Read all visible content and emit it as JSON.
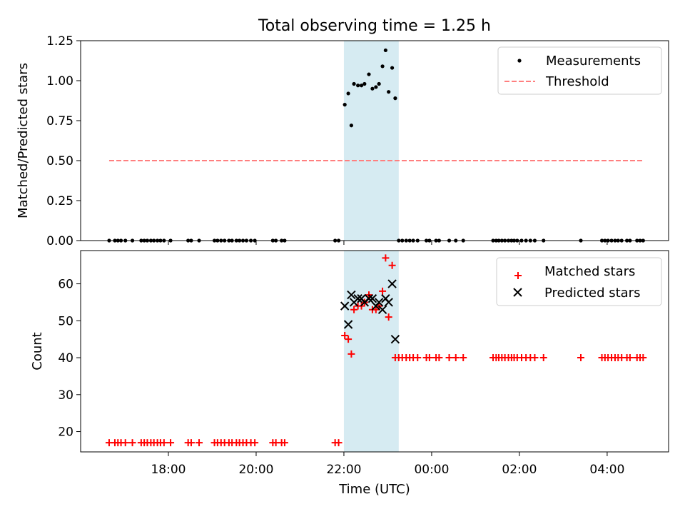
{
  "chart_data": [
    {
      "type": "scatter",
      "title": "Total observing time = 1.25 h",
      "xlabel": "",
      "ylabel": "Matched/Predicted stars",
      "ylim": [
        0,
        1.25
      ],
      "yticks": [
        "0.00",
        "0.25",
        "0.50",
        "0.75",
        "1.00",
        "1.25"
      ],
      "x_unit": "hours since 00:00 (UTC), negative = previous day",
      "xlim": [
        -8.0,
        5.4
      ],
      "shaded_interval": [
        -2.0,
        -0.75
      ],
      "shade_color": "#add8e6",
      "legend": "top-right",
      "series": [
        {
          "name": "Measurements",
          "kind": "dots",
          "color": "#000000",
          "points": [
            [
              -7.35,
              0
            ],
            [
              -7.22,
              0
            ],
            [
              -7.15,
              0
            ],
            [
              -7.08,
              0
            ],
            [
              -6.98,
              0
            ],
            [
              -6.82,
              0
            ],
            [
              -6.62,
              0
            ],
            [
              -6.55,
              0
            ],
            [
              -6.48,
              0
            ],
            [
              -6.4,
              0
            ],
            [
              -6.33,
              0
            ],
            [
              -6.25,
              0
            ],
            [
              -6.18,
              0
            ],
            [
              -6.1,
              0
            ],
            [
              -5.95,
              0
            ],
            [
              -5.55,
              0
            ],
            [
              -5.48,
              0
            ],
            [
              -5.3,
              0
            ],
            [
              -4.95,
              0
            ],
            [
              -4.88,
              0
            ],
            [
              -4.8,
              0
            ],
            [
              -4.72,
              0
            ],
            [
              -4.62,
              0
            ],
            [
              -4.55,
              0
            ],
            [
              -4.45,
              0
            ],
            [
              -4.38,
              0
            ],
            [
              -4.3,
              0
            ],
            [
              -4.22,
              0
            ],
            [
              -4.12,
              0
            ],
            [
              -4.03,
              0
            ],
            [
              -3.62,
              0
            ],
            [
              -3.55,
              0
            ],
            [
              -3.42,
              0
            ],
            [
              -3.35,
              0
            ],
            [
              -2.2,
              0
            ],
            [
              -2.12,
              0
            ],
            [
              -1.98,
              0.85
            ],
            [
              -1.9,
              0.92
            ],
            [
              -1.83,
              0.72
            ],
            [
              -1.77,
              0.98
            ],
            [
              -1.68,
              0.97
            ],
            [
              -1.6,
              0.97
            ],
            [
              -1.53,
              0.98
            ],
            [
              -1.43,
              1.04
            ],
            [
              -1.35,
              0.95
            ],
            [
              -1.27,
              0.96
            ],
            [
              -1.2,
              0.98
            ],
            [
              -1.12,
              1.09
            ],
            [
              -1.05,
              1.19
            ],
            [
              -0.98,
              0.93
            ],
            [
              -0.9,
              1.08
            ],
            [
              -0.83,
              0.89
            ],
            [
              -0.75,
              0
            ],
            [
              -0.67,
              0
            ],
            [
              -0.58,
              0
            ],
            [
              -0.5,
              0
            ],
            [
              -0.42,
              0
            ],
            [
              -0.32,
              0
            ],
            [
              -0.12,
              0
            ],
            [
              -0.05,
              0
            ],
            [
              0.1,
              0
            ],
            [
              0.17,
              0
            ],
            [
              0.4,
              0
            ],
            [
              0.55,
              0
            ],
            [
              0.72,
              0
            ],
            [
              1.4,
              0
            ],
            [
              1.47,
              0
            ],
            [
              1.53,
              0
            ],
            [
              1.6,
              0
            ],
            [
              1.67,
              0
            ],
            [
              1.75,
              0
            ],
            [
              1.82,
              0
            ],
            [
              1.88,
              0
            ],
            [
              1.95,
              0
            ],
            [
              2.05,
              0
            ],
            [
              2.15,
              0
            ],
            [
              2.25,
              0
            ],
            [
              2.35,
              0
            ],
            [
              2.55,
              0
            ],
            [
              3.4,
              0
            ],
            [
              3.88,
              0
            ],
            [
              3.95,
              0
            ],
            [
              4.02,
              0
            ],
            [
              4.1,
              0
            ],
            [
              4.18,
              0
            ],
            [
              4.25,
              0
            ],
            [
              4.33,
              0
            ],
            [
              4.45,
              0
            ],
            [
              4.52,
              0
            ],
            [
              4.68,
              0
            ],
            [
              4.75,
              0
            ],
            [
              4.82,
              0
            ]
          ]
        },
        {
          "name": "Threshold",
          "kind": "dashed-line",
          "color": "#ff7f7f",
          "points": [
            [
              -7.35,
              0.5
            ],
            [
              4.8,
              0.5
            ]
          ]
        }
      ]
    },
    {
      "type": "scatter",
      "title": "",
      "xlabel": "Time (UTC)",
      "ylabel": "Count",
      "ylim": [
        14.5,
        69
      ],
      "yticks": [
        "20",
        "30",
        "40",
        "50",
        "60"
      ],
      "x_unit": "hours since 00:00 (UTC), negative = previous day",
      "xlim": [
        -8.0,
        5.4
      ],
      "xticks": [
        "18:00",
        "20:00",
        "22:00",
        "00:00",
        "02:00",
        "04:00"
      ],
      "shaded_interval": [
        -2.0,
        -0.75
      ],
      "shade_color": "#add8e6",
      "legend": "top-right",
      "series": [
        {
          "name": "Matched stars",
          "kind": "plus",
          "color": "#ff0000",
          "points": [
            [
              -7.35,
              17
            ],
            [
              -7.22,
              17
            ],
            [
              -7.15,
              17
            ],
            [
              -7.08,
              17
            ],
            [
              -6.98,
              17
            ],
            [
              -6.82,
              17
            ],
            [
              -6.62,
              17
            ],
            [
              -6.55,
              17
            ],
            [
              -6.48,
              17
            ],
            [
              -6.4,
              17
            ],
            [
              -6.33,
              17
            ],
            [
              -6.25,
              17
            ],
            [
              -6.18,
              17
            ],
            [
              -6.1,
              17
            ],
            [
              -5.95,
              17
            ],
            [
              -5.55,
              17
            ],
            [
              -5.48,
              17
            ],
            [
              -5.3,
              17
            ],
            [
              -4.95,
              17
            ],
            [
              -4.88,
              17
            ],
            [
              -4.8,
              17
            ],
            [
              -4.72,
              17
            ],
            [
              -4.62,
              17
            ],
            [
              -4.55,
              17
            ],
            [
              -4.45,
              17
            ],
            [
              -4.38,
              17
            ],
            [
              -4.3,
              17
            ],
            [
              -4.22,
              17
            ],
            [
              -4.12,
              17
            ],
            [
              -4.03,
              17
            ],
            [
              -3.62,
              17
            ],
            [
              -3.55,
              17
            ],
            [
              -3.42,
              17
            ],
            [
              -3.35,
              17
            ],
            [
              -2.2,
              17
            ],
            [
              -2.12,
              17
            ],
            [
              -1.98,
              46
            ],
            [
              -1.9,
              45
            ],
            [
              -1.83,
              41
            ],
            [
              -1.77,
              53
            ],
            [
              -1.68,
              54
            ],
            [
              -1.6,
              54
            ],
            [
              -1.53,
              55
            ],
            [
              -1.43,
              57
            ],
            [
              -1.35,
              53
            ],
            [
              -1.27,
              53
            ],
            [
              -1.2,
              54
            ],
            [
              -1.12,
              58
            ],
            [
              -1.05,
              67
            ],
            [
              -0.98,
              51
            ],
            [
              -0.9,
              65
            ],
            [
              -0.83,
              40
            ],
            [
              -0.75,
              40
            ],
            [
              -0.67,
              40
            ],
            [
              -0.58,
              40
            ],
            [
              -0.5,
              40
            ],
            [
              -0.42,
              40
            ],
            [
              -0.32,
              40
            ],
            [
              -0.12,
              40
            ],
            [
              -0.05,
              40
            ],
            [
              0.1,
              40
            ],
            [
              0.17,
              40
            ],
            [
              0.4,
              40
            ],
            [
              0.55,
              40
            ],
            [
              0.72,
              40
            ],
            [
              1.4,
              40
            ],
            [
              1.47,
              40
            ],
            [
              1.53,
              40
            ],
            [
              1.6,
              40
            ],
            [
              1.67,
              40
            ],
            [
              1.75,
              40
            ],
            [
              1.82,
              40
            ],
            [
              1.88,
              40
            ],
            [
              1.95,
              40
            ],
            [
              2.05,
              40
            ],
            [
              2.15,
              40
            ],
            [
              2.25,
              40
            ],
            [
              2.35,
              40
            ],
            [
              2.55,
              40
            ],
            [
              3.4,
              40
            ],
            [
              3.88,
              40
            ],
            [
              3.95,
              40
            ],
            [
              4.02,
              40
            ],
            [
              4.1,
              40
            ],
            [
              4.18,
              40
            ],
            [
              4.25,
              40
            ],
            [
              4.33,
              40
            ],
            [
              4.45,
              40
            ],
            [
              4.52,
              40
            ],
            [
              4.68,
              40
            ],
            [
              4.75,
              40
            ],
            [
              4.82,
              40
            ]
          ]
        },
        {
          "name": "Predicted stars",
          "kind": "x",
          "color": "#000000",
          "points": [
            [
              -1.98,
              54
            ],
            [
              -1.9,
              49
            ],
            [
              -1.83,
              57
            ],
            [
              -1.77,
              55
            ],
            [
              -1.68,
              56
            ],
            [
              -1.6,
              56
            ],
            [
              -1.53,
              55
            ],
            [
              -1.43,
              56
            ],
            [
              -1.35,
              56
            ],
            [
              -1.27,
              54
            ],
            [
              -1.2,
              55
            ],
            [
              -1.12,
              53
            ],
            [
              -1.05,
              56
            ],
            [
              -0.98,
              55
            ],
            [
              -0.9,
              60
            ],
            [
              -0.83,
              45
            ]
          ]
        }
      ]
    }
  ]
}
